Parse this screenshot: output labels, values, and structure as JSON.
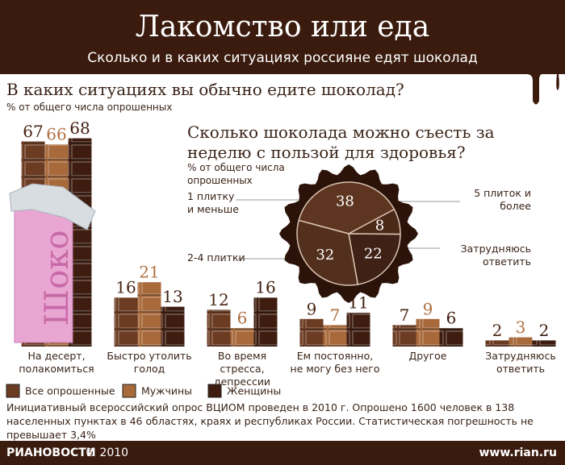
{
  "header": {
    "title": "Лакомство или еда",
    "subtitle": "Сколько и в каких ситуациях россияне едят шоколад"
  },
  "chart_data": [
    {
      "type": "bar",
      "title": "В каких ситуациях вы обычно едите шоколад?",
      "subtitle": "% от общего числа опрошенных",
      "categories": [
        "На десерт, полакомиться",
        "Быстро утолить голод",
        "Во время стресса, депрессии",
        "Ем постоянно, не могу без него",
        "Другое",
        "Затрудняюсь ответить"
      ],
      "series": [
        {
          "name": "Все опрошенные",
          "color": "#6b3b22",
          "label_color": "#4a2716",
          "values": [
            67,
            16,
            12,
            9,
            7,
            2
          ]
        },
        {
          "name": "Мужчины",
          "color": "#a8693b",
          "label_color": "#b07040",
          "values": [
            66,
            21,
            6,
            7,
            9,
            3
          ]
        },
        {
          "name": "Женщины",
          "color": "#3e1d10",
          "label_color": "#3e1d10",
          "values": [
            68,
            13,
            16,
            11,
            6,
            2
          ]
        }
      ]
    },
    {
      "type": "pie",
      "title": "Сколько шоколада можно съесть за неделю с пользой для здоровья?",
      "subtitle": "% от общего числа опрошенных",
      "categories": [
        "1 плитку и меньше",
        "5 плиток и более",
        "Затрудняюсь ответить",
        "2-4 плитки"
      ],
      "values": [
        38,
        8,
        22,
        32
      ],
      "colors": [
        "#5e3521",
        "#4b2919",
        "#3f2215",
        "#52301d"
      ]
    }
  ],
  "illustration_text": "Шоко",
  "note": "Инициативный всероссийский опрос ВЦИОМ проведен в 2010 г. Опрошено 1600 человек в 138 населенных пунктах в 46 областях, краях и республиках России. Статистическая погрешность не превышает 3,4%",
  "footer": {
    "brand": "РИАНОВОСТИ",
    "copyright": "© 2010",
    "url": "www.rian.ru"
  }
}
